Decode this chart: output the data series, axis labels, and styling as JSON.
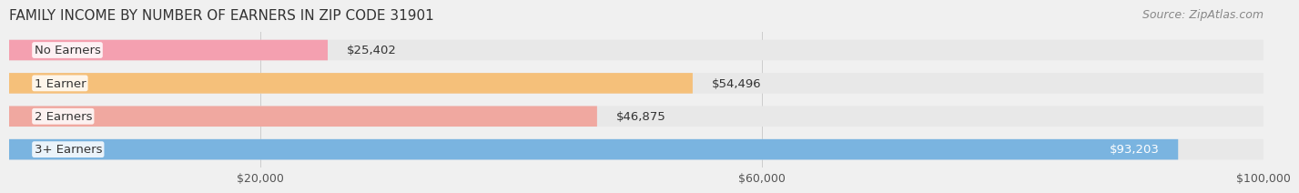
{
  "title": "FAMILY INCOME BY NUMBER OF EARNERS IN ZIP CODE 31901",
  "source": "Source: ZipAtlas.com",
  "categories": [
    "No Earners",
    "1 Earner",
    "2 Earners",
    "3+ Earners"
  ],
  "values": [
    25402,
    54496,
    46875,
    93203
  ],
  "bar_colors": [
    "#f4a0b0",
    "#f5c07a",
    "#f0a8a0",
    "#7ab4e0"
  ],
  "label_colors": [
    "#555555",
    "#555555",
    "#555555",
    "#ffffff"
  ],
  "value_labels": [
    "$25,402",
    "$54,496",
    "$46,875",
    "$93,203"
  ],
  "x_min": 0,
  "x_max": 100000,
  "x_ticks": [
    20000,
    60000,
    100000
  ],
  "x_tick_labels": [
    "$20,000",
    "$60,000",
    "$100,000"
  ],
  "bg_color": "#f0f0f0",
  "bar_bg_color": "#e8e8e8",
  "title_fontsize": 11,
  "source_fontsize": 9,
  "label_fontsize": 9.5,
  "value_fontsize": 9.5,
  "tick_fontsize": 9
}
